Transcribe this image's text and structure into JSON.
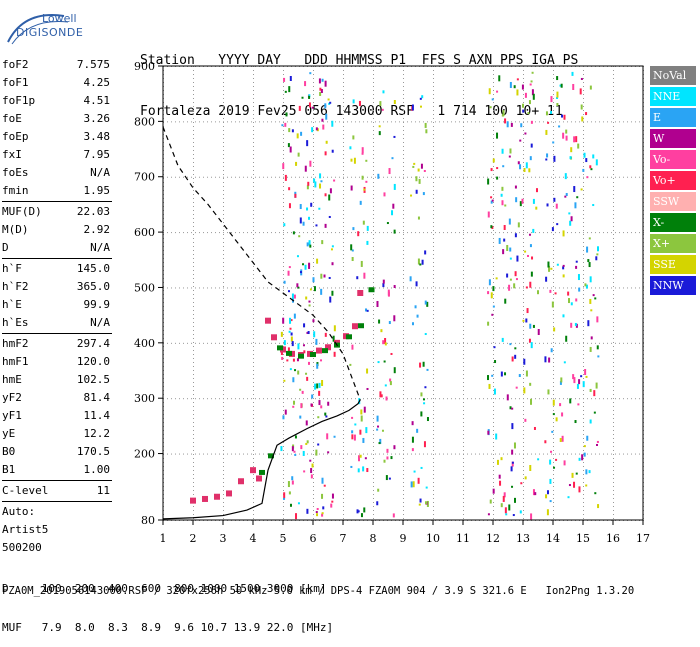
{
  "logo": {
    "top": "Lowell",
    "bottom": "DIGISONDE"
  },
  "header": {
    "line1": "Station   YYYY DAY   DDD HHMMSS P1  FFS S AXN PPS IGA PS",
    "line2": "Fortaleza 2019 Fev25 056 143000 RSF   1 714 100 10+ 11"
  },
  "params": [
    {
      "label": "foF2",
      "value": "7.575"
    },
    {
      "label": "foF1",
      "value": "4.25"
    },
    {
      "label": "foF1p",
      "value": "4.51"
    },
    {
      "label": "foE",
      "value": "3.26"
    },
    {
      "label": "foEp",
      "value": "3.48"
    },
    {
      "label": "fxI",
      "value": "7.95"
    },
    {
      "label": "foEs",
      "value": "N/A"
    },
    {
      "label": "fmin",
      "value": "1.95"
    },
    {
      "label": "MUF(D)",
      "value": "22.03"
    },
    {
      "label": "M(D)",
      "value": "2.92"
    },
    {
      "label": "D",
      "value": "N/A"
    },
    {
      "label": "h`F",
      "value": "145.0"
    },
    {
      "label": "h`F2",
      "value": "365.0"
    },
    {
      "label": "h`E",
      "value": "99.9"
    },
    {
      "label": "h`Es",
      "value": "N/A"
    },
    {
      "label": "hmF2",
      "value": "297.4"
    },
    {
      "label": "hmF1",
      "value": "120.0"
    },
    {
      "label": "hmE",
      "value": "102.5"
    },
    {
      "label": "yF2",
      "value": "81.4"
    },
    {
      "label": "yF1",
      "value": "11.4"
    },
    {
      "label": "yE",
      "value": "12.2"
    },
    {
      "label": "B0",
      "value": "170.5"
    },
    {
      "label": "B1",
      "value": "1.00"
    },
    {
      "label": "C-level",
      "value": "11"
    }
  ],
  "auto": {
    "line1": "Auto:",
    "line2": "Artist5",
    "line3": "500200"
  },
  "bottom": {
    "d_line": "D     100  200  400  600  800 1000 1500 3000 [km]",
    "muf_line": "MUF   7.9  8.0  8.3  8.9  9.6 10.7 13.9 22.0 [MHz]"
  },
  "footer": "FZA0M_2019056143000.RSF / 320fx256h 50 kHz 5.0 km / DPS-4 FZA0M 904 / 3.9 S 321.6 E   Ion2Png 1.3.20",
  "legend": [
    {
      "label": "NoVal",
      "color": "#808080"
    },
    {
      "label": "NNE",
      "color": "#00e5ff"
    },
    {
      "label": "E",
      "color": "#2aa4f4"
    },
    {
      "label": "W",
      "color": "#b0008f"
    },
    {
      "label": "Vo-",
      "color": "#ff3fa0"
    },
    {
      "label": "Vo+",
      "color": "#ff2050"
    },
    {
      "label": "SSW",
      "color": "#ffb0b0"
    },
    {
      "label": "X-",
      "color": "#00800a"
    },
    {
      "label": "X+",
      "color": "#8cc63e"
    },
    {
      "label": "SSE",
      "color": "#d4d400"
    },
    {
      "label": "NNW",
      "color": "#1a1ad8"
    }
  ],
  "chart_data": {
    "type": "scatter",
    "x_ticks": [
      1,
      2,
      3,
      4,
      5,
      6,
      7,
      8,
      9,
      10,
      11,
      12,
      13,
      14,
      15,
      16,
      17
    ],
    "y_ticks": [
      80,
      200,
      300,
      400,
      500,
      600,
      700,
      800,
      900
    ],
    "xlim": [
      1,
      17
    ],
    "ylim": [
      80,
      900
    ],
    "grid": true,
    "series": [
      {
        "name": "O-trace (virtual height)",
        "x": [
          2.0,
          2.4,
          2.8,
          3.2,
          3.6,
          4.0,
          4.2,
          4.5,
          4.7,
          5.0,
          5.3,
          5.6,
          5.9,
          6.2,
          6.5,
          6.8,
          7.1,
          7.4,
          7.575
        ],
        "y": [
          115,
          118,
          122,
          128,
          150,
          170,
          155,
          440,
          410,
          388,
          380,
          378,
          380,
          386,
          392,
          400,
          412,
          430,
          490
        ]
      },
      {
        "name": "X-trace (virtual height)",
        "x": [
          4.3,
          4.6,
          4.9,
          5.2,
          5.6,
          6.0,
          6.4,
          6.8,
          7.2,
          7.6,
          7.95
        ],
        "y": [
          165,
          195,
          390,
          380,
          375,
          378,
          385,
          395,
          410,
          430,
          495
        ]
      },
      {
        "name": "Electron density profile",
        "x": [
          1.0,
          2.0,
          3.0,
          3.8,
          4.3,
          4.5,
          4.8,
          5.2,
          5.8,
          6.3,
          6.8,
          7.2,
          7.5,
          7.575
        ],
        "y": [
          82,
          84,
          88,
          98,
          110,
          170,
          215,
          228,
          245,
          258,
          268,
          278,
          290,
          297
        ]
      },
      {
        "name": "Profile extrapolation (dashed)",
        "x": [
          1.0,
          1.5,
          2.0,
          2.5,
          3.0,
          3.5,
          4.0,
          4.5,
          5.0,
          5.5,
          6.0,
          6.5,
          7.0,
          7.575
        ],
        "y": [
          790,
          720,
          680,
          650,
          615,
          580,
          545,
          510,
          490,
          470,
          450,
          420,
          380,
          297
        ]
      }
    ]
  }
}
